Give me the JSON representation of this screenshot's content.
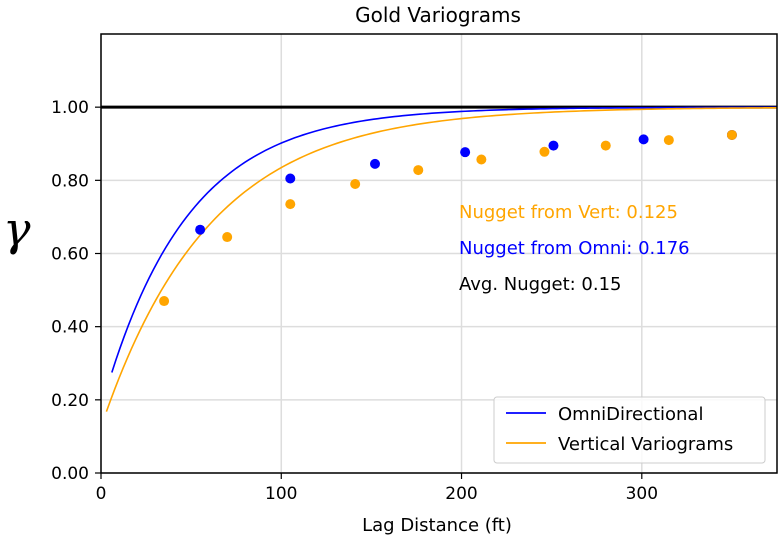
{
  "colors": {
    "omni": "#0000ff",
    "vert": "#ffa500",
    "sill": "#000000",
    "grid": "#dddddd"
  },
  "chart_data": {
    "type": "scatter",
    "title": "Gold Variograms",
    "xlabel": "Lag Distance (ft)",
    "ylabel": "γ",
    "xlim": [
      0,
      375
    ],
    "ylim": [
      0,
      1.2
    ],
    "x_ticks": [
      0,
      100,
      200,
      300
    ],
    "y_ticks": [
      0,
      0.2,
      0.4,
      0.6,
      0.8,
      1.0
    ],
    "x_tick_labels": [
      "0",
      "100",
      "200",
      "300"
    ],
    "y_tick_labels": [
      "0.00",
      "0.20",
      "0.40",
      "0.60",
      "0.80",
      "1.00"
    ],
    "sill": 1.0,
    "series": [
      {
        "name": "OmniDirectional",
        "color": "#0000ff",
        "points": [
          {
            "x": 55,
            "y": 0.665
          },
          {
            "x": 105,
            "y": 0.805
          },
          {
            "x": 152,
            "y": 0.845
          },
          {
            "x": 202,
            "y": 0.877
          },
          {
            "x": 251,
            "y": 0.895
          },
          {
            "x": 301,
            "y": 0.912
          },
          {
            "x": 350,
            "y": 0.924
          }
        ],
        "model": {
          "nugget": 0.176,
          "range": 47,
          "start_x": 6,
          "end_x": 375
        }
      },
      {
        "name": "Vertical Variograms",
        "color": "#ffa500",
        "points": [
          {
            "x": 35,
            "y": 0.47
          },
          {
            "x": 70,
            "y": 0.645
          },
          {
            "x": 105,
            "y": 0.735
          },
          {
            "x": 141,
            "y": 0.79
          },
          {
            "x": 176,
            "y": 0.828
          },
          {
            "x": 211,
            "y": 0.857
          },
          {
            "x": 246,
            "y": 0.878
          },
          {
            "x": 280,
            "y": 0.895
          },
          {
            "x": 315,
            "y": 0.91
          },
          {
            "x": 350,
            "y": 0.924
          }
        ],
        "model": {
          "nugget": 0.125,
          "range": 60,
          "start_x": 3,
          "end_x": 375
        }
      }
    ],
    "annotations": [
      {
        "text": "Nugget from Vert: 0.125",
        "color": "#ffa500"
      },
      {
        "text": "Nugget from Omni: 0.176",
        "color": "#0000ff"
      },
      {
        "text": "Avg. Nugget: 0.15",
        "color": "#000000"
      }
    ],
    "legend": {
      "position": "bottom-right",
      "entries": [
        "OmniDirectional",
        "Vertical Variograms"
      ]
    }
  }
}
